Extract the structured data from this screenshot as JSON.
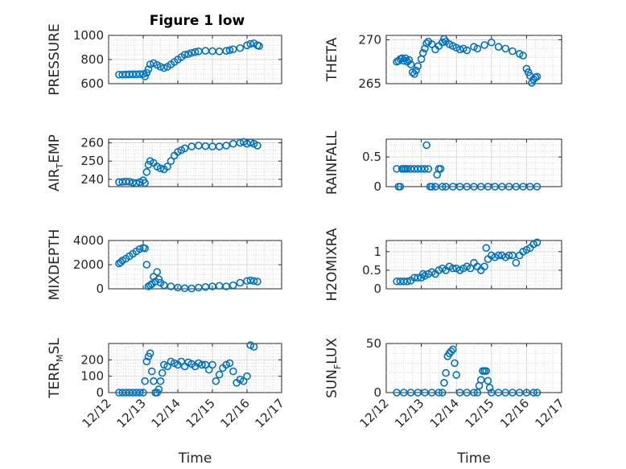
{
  "figure_title": "Figure 1 low",
  "marker_color": "#0072BD",
  "chart_data": [
    {
      "type": "scatter",
      "ylabel": "PRESSURE",
      "ylim": [
        600,
        1000
      ],
      "yticks": [
        600,
        800,
        1000
      ],
      "xlim": [
        0,
        5
      ],
      "xticks": [],
      "xlabel": "",
      "points": [
        [
          0.3,
          675
        ],
        [
          0.4,
          675
        ],
        [
          0.5,
          676
        ],
        [
          0.6,
          677
        ],
        [
          0.7,
          678
        ],
        [
          0.8,
          678
        ],
        [
          0.9,
          679
        ],
        [
          1.0,
          680
        ],
        [
          1.05,
          660
        ],
        [
          1.1,
          690
        ],
        [
          1.15,
          720
        ],
        [
          1.2,
          760
        ],
        [
          1.3,
          770
        ],
        [
          1.4,
          755
        ],
        [
          1.5,
          740
        ],
        [
          1.6,
          730
        ],
        [
          1.7,
          740
        ],
        [
          1.8,
          760
        ],
        [
          1.9,
          780
        ],
        [
          2.0,
          800
        ],
        [
          2.1,
          820
        ],
        [
          2.2,
          840
        ],
        [
          2.3,
          845
        ],
        [
          2.4,
          855
        ],
        [
          2.5,
          862
        ],
        [
          2.6,
          868
        ],
        [
          2.8,
          872
        ],
        [
          3.0,
          870
        ],
        [
          3.2,
          868
        ],
        [
          3.4,
          872
        ],
        [
          3.5,
          878
        ],
        [
          3.6,
          885
        ],
        [
          3.8,
          895
        ],
        [
          4.0,
          918
        ],
        [
          4.1,
          930
        ],
        [
          4.2,
          935
        ],
        [
          4.3,
          918
        ],
        [
          4.35,
          912
        ]
      ]
    },
    {
      "type": "scatter",
      "ylabel": "THETA",
      "ylim": [
        265,
        270.5
      ],
      "yticks": [
        265,
        270
      ],
      "xlim": [
        0,
        5
      ],
      "xticks": [],
      "xlabel": "",
      "points": [
        [
          0.3,
          267.5
        ],
        [
          0.35,
          267.6
        ],
        [
          0.4,
          267.8
        ],
        [
          0.45,
          267.9
        ],
        [
          0.5,
          267.6
        ],
        [
          0.55,
          267.9
        ],
        [
          0.6,
          267.5
        ],
        [
          0.65,
          267.7
        ],
        [
          0.7,
          267.2
        ],
        [
          0.75,
          266.3
        ],
        [
          0.8,
          266.1
        ],
        [
          0.85,
          266.5
        ],
        [
          0.9,
          267.0
        ],
        [
          1.0,
          267.8
        ],
        [
          1.05,
          268.5
        ],
        [
          1.1,
          269.0
        ],
        [
          1.15,
          269.6
        ],
        [
          1.2,
          269.8
        ],
        [
          1.3,
          269.5
        ],
        [
          1.4,
          268.9
        ],
        [
          1.5,
          269.3
        ],
        [
          1.6,
          269.7
        ],
        [
          1.65,
          270.1
        ],
        [
          1.7,
          269.8
        ],
        [
          1.8,
          269.5
        ],
        [
          1.9,
          269.3
        ],
        [
          2.0,
          269.1
        ],
        [
          2.1,
          268.9
        ],
        [
          2.2,
          269.0
        ],
        [
          2.3,
          268.8
        ],
        [
          2.5,
          269.2
        ],
        [
          2.6,
          269.0
        ],
        [
          2.8,
          269.4
        ],
        [
          3.0,
          269.7
        ],
        [
          3.2,
          269.2
        ],
        [
          3.4,
          269.0
        ],
        [
          3.6,
          268.7
        ],
        [
          3.8,
          268.4
        ],
        [
          3.9,
          268.2
        ],
        [
          4.0,
          266.7
        ],
        [
          4.05,
          266.3
        ],
        [
          4.1,
          265.9
        ],
        [
          4.15,
          265.1
        ],
        [
          4.2,
          265.5
        ],
        [
          4.25,
          265.7
        ],
        [
          4.3,
          265.8
        ]
      ]
    },
    {
      "type": "scatter",
      "ylabel": "AIR_TEMP",
      "ylim": [
        236,
        262
      ],
      "yticks": [
        240,
        250,
        260
      ],
      "xlim": [
        0,
        5
      ],
      "xticks": [],
      "xlabel": "",
      "points": [
        [
          0.3,
          238.5
        ],
        [
          0.4,
          238.6
        ],
        [
          0.5,
          238.8
        ],
        [
          0.6,
          238.7
        ],
        [
          0.7,
          238.2
        ],
        [
          0.8,
          237.9
        ],
        [
          0.9,
          238.5
        ],
        [
          1.0,
          239.5
        ],
        [
          1.05,
          238.0
        ],
        [
          1.1,
          244
        ],
        [
          1.15,
          248
        ],
        [
          1.2,
          250
        ],
        [
          1.3,
          249
        ],
        [
          1.4,
          247
        ],
        [
          1.5,
          246
        ],
        [
          1.6,
          245.5
        ],
        [
          1.7,
          247
        ],
        [
          1.8,
          250
        ],
        [
          1.9,
          253
        ],
        [
          2.0,
          255
        ],
        [
          2.1,
          256
        ],
        [
          2.2,
          257
        ],
        [
          2.4,
          258
        ],
        [
          2.6,
          258.5
        ],
        [
          2.8,
          258.2
        ],
        [
          3.0,
          258
        ],
        [
          3.2,
          258
        ],
        [
          3.4,
          258.5
        ],
        [
          3.6,
          259.5
        ],
        [
          3.8,
          260
        ],
        [
          3.9,
          260.5
        ],
        [
          4.0,
          259.5
        ],
        [
          4.1,
          260.2
        ],
        [
          4.2,
          259.5
        ],
        [
          4.3,
          258.5
        ]
      ]
    },
    {
      "type": "scatter",
      "ylabel": "RAINFALL",
      "ylim": [
        0,
        0.8
      ],
      "yticks": [
        0,
        0.5
      ],
      "xlim": [
        0,
        5
      ],
      "xticks": [],
      "xlabel": "",
      "points": [
        [
          0.3,
          0.3
        ],
        [
          0.35,
          0
        ],
        [
          0.4,
          0
        ],
        [
          0.45,
          0.3
        ],
        [
          0.5,
          0.3
        ],
        [
          0.55,
          0.3
        ],
        [
          0.6,
          0.3
        ],
        [
          0.7,
          0.3
        ],
        [
          0.8,
          0.3
        ],
        [
          0.9,
          0.3
        ],
        [
          1.0,
          0.3
        ],
        [
          1.1,
          0.3
        ],
        [
          1.15,
          0.7
        ],
        [
          1.2,
          0.3
        ],
        [
          1.25,
          0
        ],
        [
          1.3,
          0
        ],
        [
          1.4,
          0
        ],
        [
          1.45,
          0.2
        ],
        [
          1.5,
          0.3
        ],
        [
          1.55,
          0.3
        ],
        [
          1.6,
          0
        ],
        [
          1.7,
          0
        ],
        [
          1.9,
          0
        ],
        [
          2.1,
          0
        ],
        [
          2.3,
          0
        ],
        [
          2.5,
          0
        ],
        [
          2.7,
          0
        ],
        [
          2.9,
          0
        ],
        [
          3.1,
          0
        ],
        [
          3.3,
          0
        ],
        [
          3.5,
          0
        ],
        [
          3.7,
          0
        ],
        [
          3.9,
          0
        ],
        [
          4.1,
          0
        ],
        [
          4.3,
          0
        ]
      ]
    },
    {
      "type": "scatter",
      "ylabel": "MIXDEPTH",
      "ylim": [
        0,
        4000
      ],
      "yticks": [
        0,
        2000,
        4000
      ],
      "xlim": [
        0,
        5
      ],
      "xticks": [],
      "xlabel": "",
      "points": [
        [
          0.3,
          2100
        ],
        [
          0.35,
          2200
        ],
        [
          0.4,
          2350
        ],
        [
          0.5,
          2500
        ],
        [
          0.6,
          2700
        ],
        [
          0.7,
          2900
        ],
        [
          0.8,
          3100
        ],
        [
          0.9,
          3300
        ],
        [
          1.0,
          3400
        ],
        [
          1.05,
          3350
        ],
        [
          1.1,
          2000
        ],
        [
          1.15,
          200
        ],
        [
          1.2,
          300
        ],
        [
          1.25,
          400
        ],
        [
          1.3,
          1000
        ],
        [
          1.35,
          600
        ],
        [
          1.4,
          1400
        ],
        [
          1.45,
          800
        ],
        [
          1.5,
          500
        ],
        [
          1.6,
          300
        ],
        [
          1.8,
          200
        ],
        [
          2.0,
          100
        ],
        [
          2.2,
          50
        ],
        [
          2.4,
          30
        ],
        [
          2.6,
          100
        ],
        [
          2.8,
          150
        ],
        [
          3.0,
          200
        ],
        [
          3.2,
          250
        ],
        [
          3.4,
          200
        ],
        [
          3.6,
          300
        ],
        [
          3.8,
          500
        ],
        [
          4.0,
          650
        ],
        [
          4.1,
          700
        ],
        [
          4.2,
          650
        ],
        [
          4.3,
          600
        ]
      ]
    },
    {
      "type": "scatter",
      "ylabel": "H2OMIXRA",
      "ylim": [
        0,
        1.3
      ],
      "yticks": [
        0,
        0.5,
        1
      ],
      "xlim": [
        0,
        5
      ],
      "xticks": [],
      "xlabel": "",
      "points": [
        [
          0.3,
          0.2
        ],
        [
          0.4,
          0.2
        ],
        [
          0.5,
          0.2
        ],
        [
          0.6,
          0.2
        ],
        [
          0.7,
          0.22
        ],
        [
          0.8,
          0.3
        ],
        [
          0.9,
          0.3
        ],
        [
          1.0,
          0.3
        ],
        [
          1.05,
          0.4
        ],
        [
          1.1,
          0.35
        ],
        [
          1.2,
          0.4
        ],
        [
          1.3,
          0.45
        ],
        [
          1.4,
          0.4
        ],
        [
          1.5,
          0.5
        ],
        [
          1.6,
          0.55
        ],
        [
          1.7,
          0.5
        ],
        [
          1.8,
          0.6
        ],
        [
          1.9,
          0.55
        ],
        [
          2.0,
          0.55
        ],
        [
          2.1,
          0.5
        ],
        [
          2.2,
          0.55
        ],
        [
          2.3,
          0.6
        ],
        [
          2.4,
          0.55
        ],
        [
          2.5,
          0.7
        ],
        [
          2.6,
          0.6
        ],
        [
          2.7,
          0.5
        ],
        [
          2.8,
          0.6
        ],
        [
          2.85,
          1.1
        ],
        [
          2.9,
          0.8
        ],
        [
          3.0,
          0.9
        ],
        [
          3.1,
          0.85
        ],
        [
          3.2,
          0.9
        ],
        [
          3.3,
          0.9
        ],
        [
          3.4,
          0.85
        ],
        [
          3.5,
          0.9
        ],
        [
          3.6,
          0.9
        ],
        [
          3.7,
          0.7
        ],
        [
          3.8,
          0.9
        ],
        [
          3.9,
          1.0
        ],
        [
          4.0,
          1.05
        ],
        [
          4.1,
          1.1
        ],
        [
          4.2,
          1.2
        ],
        [
          4.3,
          1.25
        ]
      ]
    },
    {
      "type": "scatter",
      "ylabel": "TERR_MSL",
      "ylim": [
        0,
        300
      ],
      "yticks": [
        0,
        100,
        200
      ],
      "xlim": [
        0,
        5
      ],
      "xticks": [
        "12/12",
        "12/13",
        "12/14",
        "12/15",
        "12/16",
        "12/17"
      ],
      "xlabel": "Time",
      "points": [
        [
          0.3,
          0
        ],
        [
          0.4,
          0
        ],
        [
          0.5,
          0
        ],
        [
          0.6,
          0
        ],
        [
          0.7,
          0
        ],
        [
          0.8,
          0
        ],
        [
          0.9,
          0
        ],
        [
          1.0,
          0
        ],
        [
          1.05,
          70
        ],
        [
          1.1,
          190
        ],
        [
          1.15,
          220
        ],
        [
          1.2,
          240
        ],
        [
          1.25,
          130
        ],
        [
          1.3,
          70
        ],
        [
          1.35,
          0
        ],
        [
          1.4,
          0
        ],
        [
          1.45,
          20
        ],
        [
          1.5,
          70
        ],
        [
          1.55,
          120
        ],
        [
          1.6,
          170
        ],
        [
          1.7,
          160
        ],
        [
          1.8,
          190
        ],
        [
          1.9,
          180
        ],
        [
          2.0,
          170
        ],
        [
          2.1,
          190
        ],
        [
          2.2,
          160
        ],
        [
          2.3,
          185
        ],
        [
          2.4,
          175
        ],
        [
          2.5,
          160
        ],
        [
          2.6,
          180
        ],
        [
          2.7,
          170
        ],
        [
          2.8,
          170
        ],
        [
          2.9,
          140
        ],
        [
          3.0,
          170
        ],
        [
          3.1,
          70
        ],
        [
          3.2,
          110
        ],
        [
          3.3,
          150
        ],
        [
          3.4,
          170
        ],
        [
          3.5,
          180
        ],
        [
          3.6,
          130
        ],
        [
          3.7,
          60
        ],
        [
          3.8,
          80
        ],
        [
          3.9,
          70
        ],
        [
          4.0,
          100
        ],
        [
          4.1,
          290
        ],
        [
          4.2,
          280
        ]
      ]
    },
    {
      "type": "scatter",
      "ylabel": "SUN_FLUX",
      "ylim": [
        0,
        50
      ],
      "yticks": [
        0,
        50
      ],
      "xlim": [
        0,
        5
      ],
      "xticks": [
        "12/12",
        "12/13",
        "12/14",
        "12/15",
        "12/16",
        "12/17"
      ],
      "xlabel": "Time",
      "points": [
        [
          0.3,
          0
        ],
        [
          0.5,
          0
        ],
        [
          0.7,
          0
        ],
        [
          0.9,
          0
        ],
        [
          1.1,
          0
        ],
        [
          1.3,
          0
        ],
        [
          1.5,
          0
        ],
        [
          1.6,
          0
        ],
        [
          1.65,
          10
        ],
        [
          1.7,
          20
        ],
        [
          1.75,
          37
        ],
        [
          1.8,
          40
        ],
        [
          1.85,
          42
        ],
        [
          1.9,
          44
        ],
        [
          1.95,
          30
        ],
        [
          2.0,
          18
        ],
        [
          2.1,
          0
        ],
        [
          2.3,
          0
        ],
        [
          2.5,
          0
        ],
        [
          2.6,
          0
        ],
        [
          2.65,
          7
        ],
        [
          2.7,
          13
        ],
        [
          2.75,
          22
        ],
        [
          2.8,
          22
        ],
        [
          2.85,
          22
        ],
        [
          2.9,
          12
        ],
        [
          2.95,
          5
        ],
        [
          3.0,
          0
        ],
        [
          3.2,
          0
        ],
        [
          3.4,
          0
        ],
        [
          3.6,
          0
        ],
        [
          3.8,
          0
        ],
        [
          4.0,
          0
        ],
        [
          4.2,
          0
        ],
        [
          4.3,
          0
        ]
      ]
    }
  ]
}
